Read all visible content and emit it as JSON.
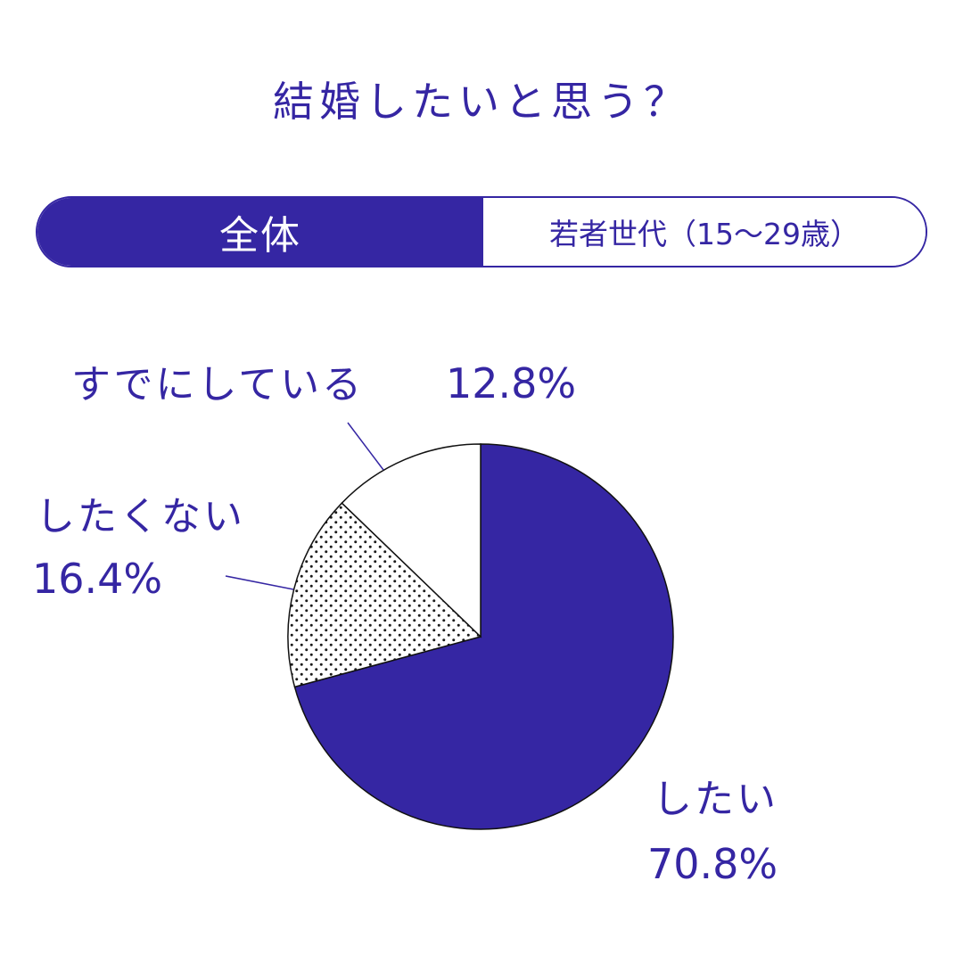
{
  "title": "結婚したいと思う？",
  "tabs": [
    {
      "label": "全体",
      "active": true
    },
    {
      "label": "若者世代（15〜29歳）",
      "active": false
    }
  ],
  "colors": {
    "accent": "#3526a3",
    "background": "#ffffff",
    "dots": "#1a1a1a"
  },
  "chart_data": {
    "type": "pie",
    "slices": [
      {
        "label": "したい",
        "value": 70.8,
        "value_label": "70.8%",
        "fill": "solid"
      },
      {
        "label": "したくない",
        "value": 16.4,
        "value_label": "16.4%",
        "fill": "dots"
      },
      {
        "label": "すでにしている",
        "value": 12.8,
        "value_label": "12.8%",
        "fill": "white"
      }
    ],
    "start": "12-o'clock",
    "direction": "clockwise",
    "legend": "none"
  }
}
